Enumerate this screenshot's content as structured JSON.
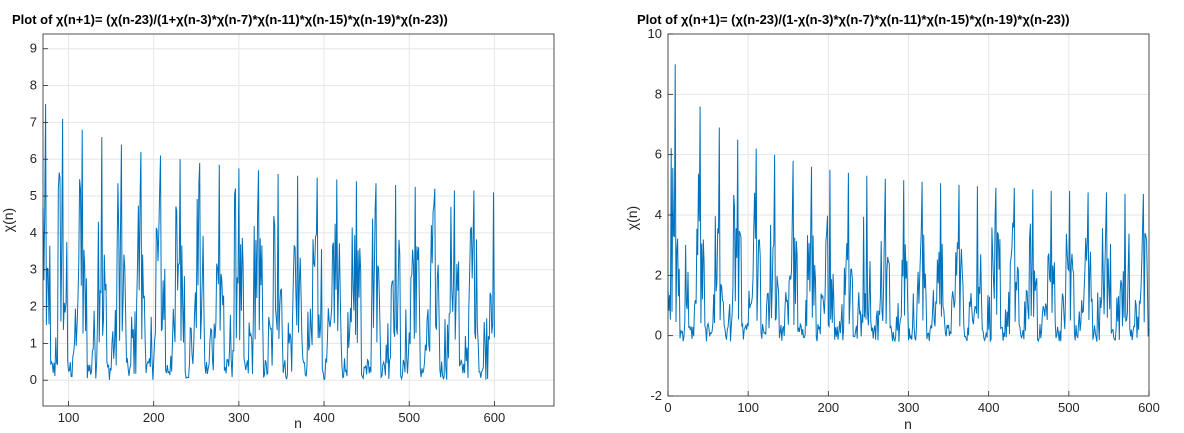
{
  "colors": {
    "series": "#0072bd",
    "grid": "#e6e6e6",
    "axis": "#262626",
    "background": "#ffffff"
  },
  "chart_data": [
    {
      "type": "line",
      "title": "Plot of χ(n+1)= (χ(n-23)/(1+χ(n-3)*χ(n-7)*χ(n-11)*χ(n-15)*χ(n-19)*χ(n-23))",
      "xlabel": "n",
      "ylabel": "χ(n)",
      "xlim": [
        70,
        670
      ],
      "ylim": [
        -0.7,
        9.4
      ],
      "xticks": [
        100,
        200,
        300,
        400,
        500,
        600
      ],
      "yticks": [
        0,
        1,
        2,
        3,
        4,
        5,
        6,
        7,
        8,
        9
      ],
      "grid": true,
      "series": [
        {
          "n_start": 70,
          "n_end": 600,
          "period": 23,
          "peak_n": [
            73,
            93,
            116,
            139,
            162,
            185,
            208,
            231,
            254,
            277,
            300,
            323,
            346,
            369,
            392,
            415,
            438,
            461,
            484,
            507,
            530,
            553,
            576,
            599
          ],
          "peak_values": [
            7.5,
            7.1,
            6.8,
            6.6,
            6.4,
            6.2,
            6.1,
            6.0,
            5.9,
            5.85,
            5.75,
            5.7,
            5.6,
            5.55,
            5.5,
            5.45,
            5.4,
            5.35,
            5.3,
            5.25,
            5.2,
            5.15,
            5.15,
            5.1
          ],
          "trough_low": 0.0,
          "mid_range": [
            1.0,
            4.0
          ]
        }
      ]
    },
    {
      "type": "line",
      "title": "Plot of χ(n+1)= (χ(n-23)/(1-χ(n-3)*χ(n-7)*χ(n-11)*χ(n-15)*χ(n-19)*χ(n-23))",
      "xlabel": "n",
      "ylabel": "χ(n)",
      "xlim": [
        0,
        600
      ],
      "ylim": [
        -2,
        10
      ],
      "xticks": [
        0,
        100,
        200,
        300,
        400,
        500,
        600
      ],
      "yticks": [
        -2,
        0,
        2,
        4,
        6,
        8,
        10
      ],
      "grid": true,
      "series": [
        {
          "n_start": 0,
          "n_end": 600,
          "period": 23,
          "peak_n": [
            9,
            20,
            40,
            64,
            87,
            110,
            133,
            156,
            179,
            202,
            225,
            248,
            271,
            294,
            317,
            340,
            363,
            386,
            409,
            432,
            455,
            478,
            501,
            524,
            547,
            570,
            593
          ],
          "peak_values": [
            9.0,
            9.5,
            7.6,
            6.9,
            6.5,
            6.2,
            6.0,
            5.8,
            5.6,
            5.5,
            5.4,
            5.3,
            5.2,
            5.15,
            5.1,
            5.05,
            5.0,
            4.95,
            4.9,
            4.9,
            4.85,
            4.8,
            4.8,
            4.75,
            4.75,
            4.7,
            4.7
          ],
          "trough_low": -0.2,
          "mid_range": [
            0.3,
            3.5
          ]
        }
      ]
    }
  ]
}
